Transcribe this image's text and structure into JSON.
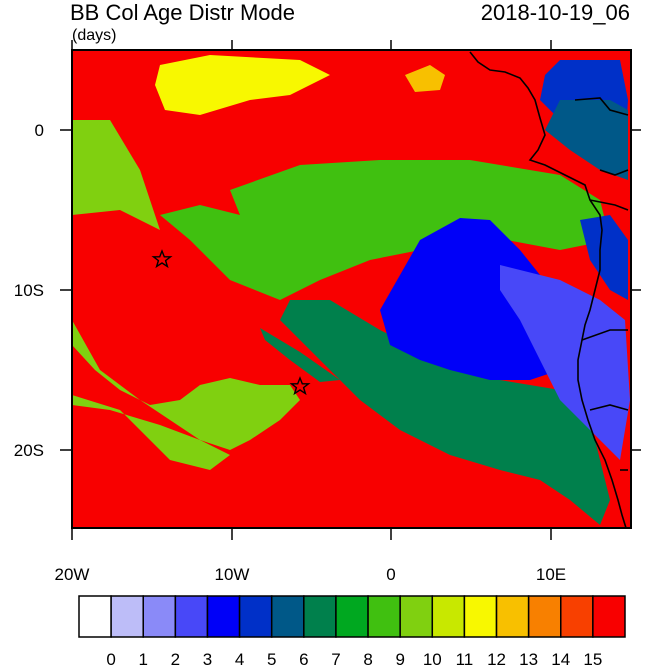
{
  "title": "BB Col Age Distr Mode",
  "datetime": "2018-10-19_06",
  "units": "(days)",
  "axes": {
    "x_ticks": [
      {
        "lon": -20,
        "label": "20W"
      },
      {
        "lon": -10,
        "label": "10W"
      },
      {
        "lon": 0,
        "label": "0"
      },
      {
        "lon": 10,
        "label": "10E"
      }
    ],
    "y_ticks": [
      {
        "lat": 0,
        "label": "0"
      },
      {
        "lat": -10,
        "label": "10S"
      },
      {
        "lat": -20,
        "label": "20S"
      }
    ],
    "lon_range": [
      -20,
      15
    ],
    "lat_range": [
      -25,
      5
    ]
  },
  "markers": [
    {
      "name": "star-marker-1",
      "lon": -14.3,
      "lat": -8.2
    },
    {
      "name": "star-marker-2",
      "lon": -5.7,
      "lat": -16.0
    }
  ],
  "colorbar": {
    "labels": [
      "0",
      "1",
      "2",
      "3",
      "4",
      "5",
      "6",
      "7",
      "8",
      "9",
      "10",
      "11",
      "12",
      "13",
      "14",
      "15"
    ],
    "colors": [
      "#ffffff",
      "#bdbdf8",
      "#8a8af8",
      "#4848f8",
      "#0000f8",
      "#0030c8",
      "#005888",
      "#00804c",
      "#00a820",
      "#40c010",
      "#80d010",
      "#c8e800",
      "#f8f800",
      "#f8c000",
      "#f88000",
      "#f84000",
      "#f80000"
    ]
  }
}
